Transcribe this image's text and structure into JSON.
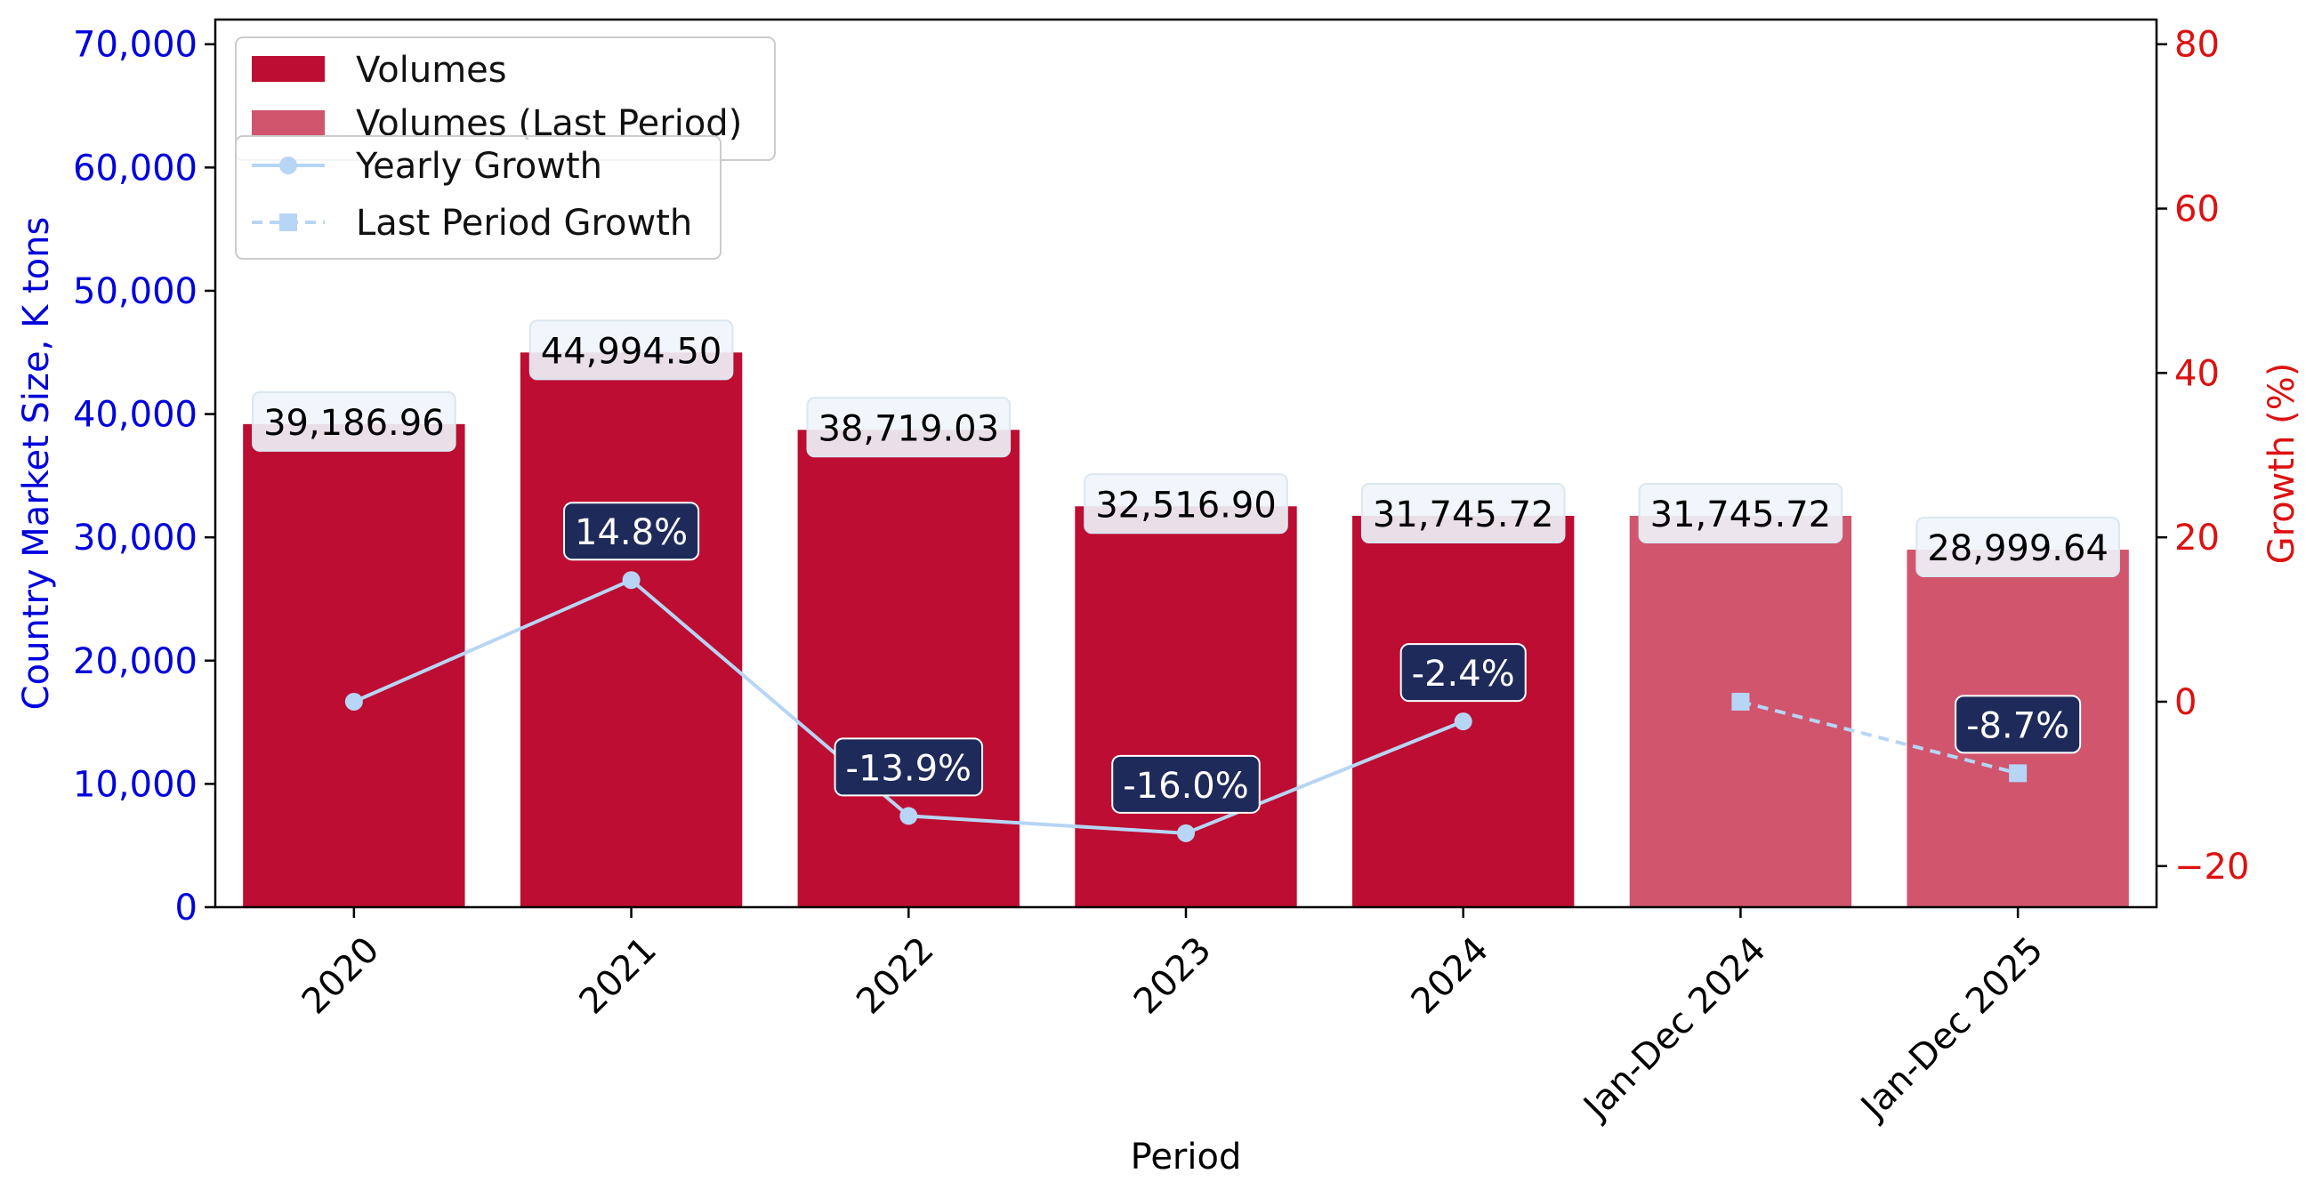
{
  "chart_data": {
    "type": "bar",
    "categories": [
      "2020",
      "2021",
      "2022",
      "2023",
      "2024",
      "Jan-Dec 2024",
      "Jan-Dec 2025"
    ],
    "series": [
      {
        "name": "Volumes",
        "values": [
          39186.96,
          44994.5,
          38719.03,
          32516.9,
          31745.72,
          null,
          null
        ],
        "labels": [
          "39,186.96",
          "44,994.50",
          "38,719.03",
          "32,516.90",
          "31,745.72",
          null,
          null
        ],
        "color": "#bd0d32"
      },
      {
        "name": "Volumes (Last Period)",
        "values": [
          null,
          null,
          null,
          null,
          null,
          31745.72,
          28999.64
        ],
        "labels": [
          null,
          null,
          null,
          null,
          null,
          "31,745.72",
          "28,999.64"
        ],
        "color": "#d0556d"
      },
      {
        "name": "Yearly Growth",
        "type": "line",
        "axis": "right",
        "marker": "circle",
        "values": [
          0.0,
          14.8,
          -13.9,
          -16.0,
          -2.4,
          null,
          null
        ],
        "labels": [
          null,
          "14.8%",
          "-13.9%",
          "-16.0%",
          "-2.4%",
          null,
          null
        ],
        "color": "#b7d5f5"
      },
      {
        "name": "Last Period Growth",
        "type": "line",
        "style": "dashed",
        "axis": "right",
        "marker": "square",
        "values": [
          null,
          null,
          null,
          null,
          null,
          0.0,
          -8.7
        ],
        "labels": [
          null,
          null,
          null,
          null,
          null,
          null,
          "-8.7%"
        ],
        "color": "#b7d5f5"
      }
    ],
    "xlabel": "Period",
    "ylabel": "Country Market Size, K tons",
    "ylabel_right": "Growth (%)",
    "ylim": [
      0,
      72000
    ],
    "ylim_right": [
      -25,
      83
    ],
    "yticks": [
      0,
      10000,
      20000,
      30000,
      40000,
      50000,
      60000,
      70000
    ],
    "ytick_labels": [
      "0",
      "10,000",
      "20,000",
      "30,000",
      "40,000",
      "50,000",
      "60,000",
      "70,000"
    ],
    "yticks_right": [
      -20,
      0,
      20,
      40,
      60,
      80
    ],
    "ytick_labels_right": [
      "−20",
      "0",
      "20",
      "40",
      "60",
      "80"
    ],
    "left_axis_color": "#0000dd",
    "right_axis_color": "#dd1111",
    "growth_label_bg": "#1e2a5a",
    "bar_label_bg": "#eef5fb",
    "grid": false,
    "legend_placement": "upper-left"
  }
}
